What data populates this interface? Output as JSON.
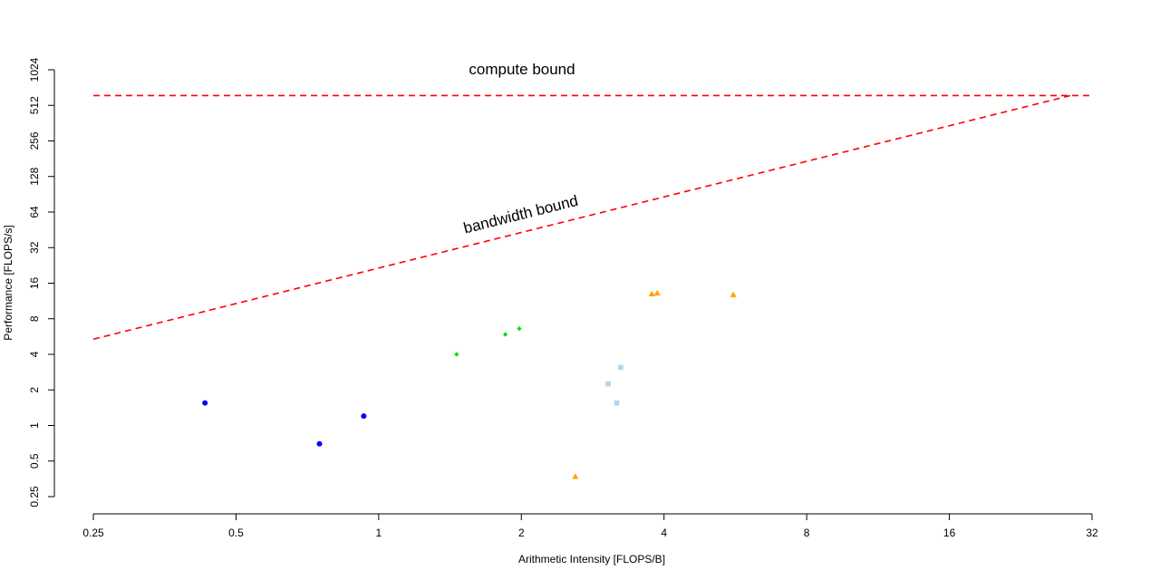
{
  "chart_data": {
    "type": "scatter",
    "xlabel": "Arithmetic Intensity [FLOPS/B]",
    "ylabel": "Performance [FLOPS/s]",
    "x_scale": "log2",
    "y_scale": "log2",
    "xlim": [
      0.25,
      32
    ],
    "ylim": [
      0.25,
      1024
    ],
    "x_ticks": [
      "0.25",
      "0.5",
      "1",
      "2",
      "4",
      "8",
      "16",
      "32"
    ],
    "y_ticks": [
      "0.25",
      "0.5",
      "1",
      "2",
      "4",
      "8",
      "16",
      "32",
      "64",
      "128",
      "256",
      "512",
      "1024"
    ],
    "grid": false,
    "legend": "none",
    "roofline": {
      "color": "#ff0000",
      "peak_performance": 620,
      "bandwidth": 21.5,
      "compute_label": "compute bound",
      "bandwidth_label": "bandwidth bound"
    },
    "series": [
      {
        "marker": "circle",
        "color": "#0000ff",
        "points": [
          [
            0.43,
            1.55
          ],
          [
            0.75,
            0.7
          ],
          [
            0.93,
            1.2
          ]
        ]
      },
      {
        "marker": "diamond",
        "color": "#00dd00",
        "points": [
          [
            1.46,
            4.0
          ],
          [
            1.85,
            5.9
          ],
          [
            1.98,
            6.6
          ]
        ]
      },
      {
        "marker": "square",
        "color": "#add8e6",
        "points": [
          [
            3.05,
            2.25
          ],
          [
            3.18,
            1.55
          ],
          [
            3.24,
            3.1
          ]
        ]
      },
      {
        "marker": "triangle",
        "color": "#ffa500",
        "points": [
          [
            2.6,
            0.37
          ],
          [
            3.77,
            13.0
          ],
          [
            3.87,
            13.2
          ],
          [
            5.6,
            12.8
          ]
        ]
      }
    ]
  }
}
